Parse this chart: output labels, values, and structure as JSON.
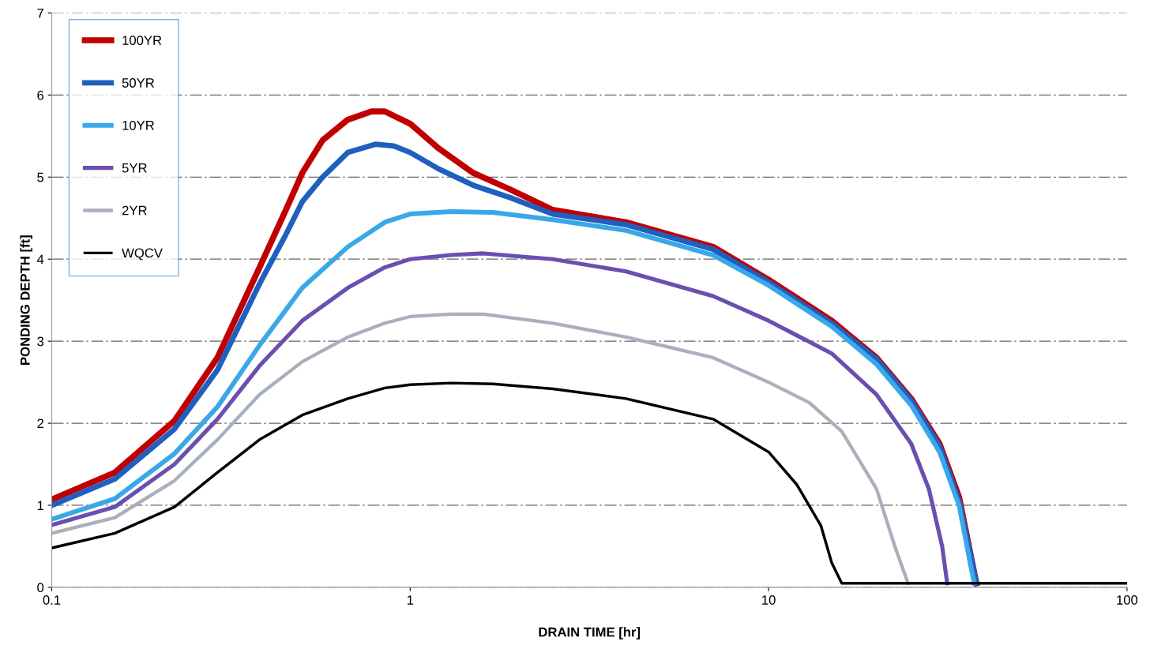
{
  "chart_data": {
    "type": "line",
    "xlabel": "DRAIN TIME [hr]",
    "ylabel": "PONDING DEPTH [ft]",
    "log": "x",
    "xlim": [
      0.1,
      100
    ],
    "ylim": [
      0,
      7
    ],
    "xticks": [
      0.1,
      1,
      10,
      100
    ],
    "yticks": [
      0,
      1,
      2,
      3,
      4,
      5,
      6,
      7
    ],
    "grid": "y",
    "legend": "top left",
    "marker": "none",
    "line_style": "solid",
    "series": [
      {
        "name": "100YR",
        "color": "#c00000",
        "x": [
          0.1,
          0.15,
          0.22,
          0.29,
          0.38,
          0.45,
          0.5,
          0.57,
          0.67,
          0.78,
          0.85,
          1,
          1.2,
          1.5,
          1.9,
          2.5,
          4,
          7,
          10,
          15,
          20,
          25,
          30,
          34,
          37,
          38
        ],
        "values": [
          1.07,
          1.4,
          2.03,
          2.8,
          3.9,
          4.6,
          5.05,
          5.45,
          5.7,
          5.8,
          5.8,
          5.65,
          5.35,
          5.05,
          4.85,
          4.6,
          4.45,
          4.15,
          3.75,
          3.25,
          2.8,
          2.3,
          1.75,
          1.1,
          0.3,
          0.05
        ]
      },
      {
        "name": "50YR",
        "color": "#1f5fbf",
        "x": [
          0.1,
          0.15,
          0.22,
          0.29,
          0.38,
          0.45,
          0.5,
          0.57,
          0.67,
          0.8,
          0.9,
          1,
          1.2,
          1.5,
          1.9,
          2.5,
          4,
          7,
          10,
          15,
          20,
          25,
          30,
          34,
          37,
          38
        ],
        "values": [
          1.0,
          1.32,
          1.93,
          2.65,
          3.7,
          4.3,
          4.7,
          5.0,
          5.3,
          5.4,
          5.38,
          5.3,
          5.1,
          4.9,
          4.75,
          4.55,
          4.42,
          4.12,
          3.72,
          3.22,
          2.78,
          2.28,
          1.72,
          1.05,
          0.3,
          0.05
        ]
      },
      {
        "name": "10YR",
        "color": "#3aa8e8",
        "x": [
          0.1,
          0.15,
          0.22,
          0.29,
          0.38,
          0.5,
          0.67,
          0.85,
          1,
          1.3,
          1.7,
          2.5,
          4,
          7,
          10,
          15,
          20,
          25,
          30,
          34,
          36.5,
          37.5
        ],
        "values": [
          0.83,
          1.08,
          1.63,
          2.2,
          2.95,
          3.65,
          4.15,
          4.45,
          4.55,
          4.58,
          4.57,
          4.48,
          4.35,
          4.05,
          3.68,
          3.18,
          2.72,
          2.22,
          1.65,
          1.0,
          0.3,
          0.05
        ]
      },
      {
        "name": "5YR",
        "color": "#6a4fb0",
        "x": [
          0.1,
          0.15,
          0.22,
          0.29,
          0.38,
          0.5,
          0.67,
          0.85,
          1,
          1.3,
          1.6,
          2.5,
          4,
          7,
          10,
          15,
          20,
          25,
          28,
          30.5,
          31.5
        ],
        "values": [
          0.76,
          0.98,
          1.5,
          2.05,
          2.7,
          3.25,
          3.65,
          3.9,
          4.0,
          4.05,
          4.07,
          4.0,
          3.85,
          3.55,
          3.25,
          2.85,
          2.35,
          1.75,
          1.2,
          0.5,
          0.05
        ]
      },
      {
        "name": "2YR",
        "color": "#a8b0bc",
        "x": [
          0.1,
          0.15,
          0.22,
          0.29,
          0.38,
          0.5,
          0.67,
          0.85,
          1,
          1.3,
          1.6,
          2.5,
          4,
          7,
          10,
          13,
          16,
          20,
          22.5,
          24.5
        ],
        "values": [
          0.66,
          0.85,
          1.3,
          1.8,
          2.35,
          2.75,
          3.05,
          3.22,
          3.3,
          3.33,
          3.33,
          3.22,
          3.05,
          2.8,
          2.5,
          2.25,
          1.9,
          1.2,
          0.5,
          0.05
        ]
      },
      {
        "name": "WQCV",
        "color": "#000000",
        "x": [
          0.1,
          0.15,
          0.22,
          0.29,
          0.38,
          0.5,
          0.67,
          0.85,
          1,
          1.3,
          1.7,
          2.5,
          4,
          7,
          10,
          12,
          14,
          15,
          16,
          100
        ],
        "values": [
          0.48,
          0.66,
          0.98,
          1.4,
          1.8,
          2.1,
          2.3,
          2.43,
          2.47,
          2.49,
          2.48,
          2.42,
          2.3,
          2.05,
          1.65,
          1.25,
          0.75,
          0.3,
          0.05,
          0.05
        ]
      }
    ]
  }
}
